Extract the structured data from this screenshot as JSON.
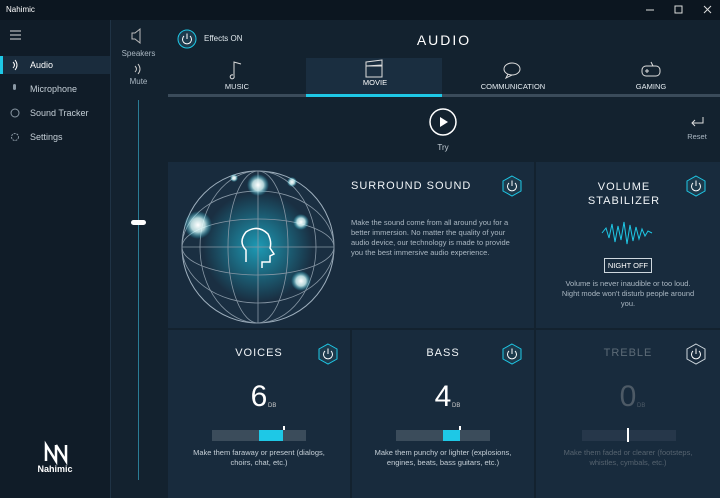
{
  "window": {
    "title": "Nahimic"
  },
  "sidebar": {
    "items": [
      "Audio",
      "Microphone",
      "Sound Tracker",
      "Settings"
    ],
    "logo": "Nahimic"
  },
  "volume": {
    "output": "Speakers",
    "mute": "Mute"
  },
  "header": {
    "effects": "Effects ON",
    "title": "AUDIO"
  },
  "tabs": [
    "MUSIC",
    "MOVIE",
    "COMMUNICATION",
    "GAMING"
  ],
  "actions": {
    "try": "Try",
    "reset": "Reset"
  },
  "surround": {
    "title": "SURROUND SOUND",
    "description": "Make the sound come from all around you for a better immersion. No matter the quality of your audio device, our technology is made to provide you the best immersive audio experience."
  },
  "stabilizer": {
    "title": "VOLUME STABILIZER",
    "button": "NIGHT OFF",
    "description": "Volume is never inaudible or too loud. Night mode won't disturb people around you."
  },
  "equalizer": [
    {
      "title": "VOICES",
      "value": 6,
      "unit": "DB",
      "description": "Make them faraway or present (dialogs, choirs, chat, etc.)"
    },
    {
      "title": "BASS",
      "value": 4,
      "unit": "DB",
      "description": "Make them punchy or lighter (explosions, engines, beats, bass guitars, etc.)"
    },
    {
      "title": "TREBLE",
      "value": 0,
      "unit": "DB",
      "description": "Make them faded or clearer (footsteps, whistles, cymbals, etc.)"
    }
  ]
}
